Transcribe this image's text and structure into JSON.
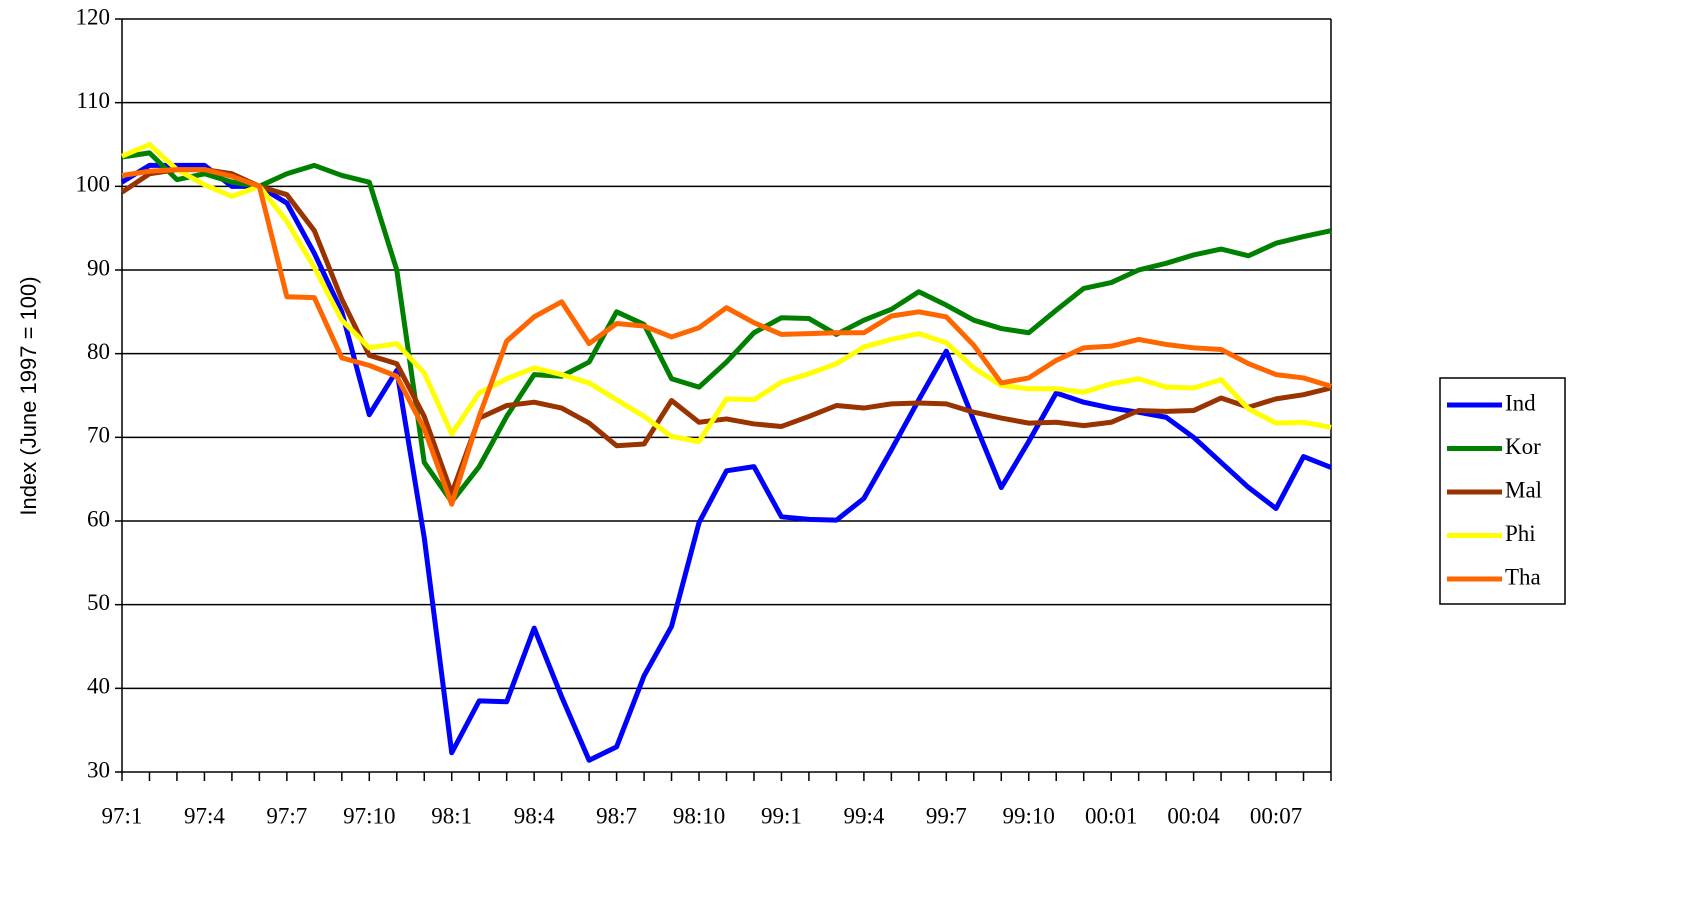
{
  "chart_data": {
    "type": "line",
    "y_label": "Index (June 1997 = 100)",
    "categories": [
      "97:1",
      null,
      null,
      "97:4",
      null,
      null,
      "97:7",
      null,
      null,
      "97:10",
      null,
      null,
      "98:1",
      null,
      null,
      "98:4",
      null,
      null,
      "98:7",
      null,
      null,
      "98:10",
      null,
      null,
      "99:1",
      null,
      null,
      "99:4",
      null,
      null,
      "99:7",
      null,
      null,
      "99:10",
      null,
      null,
      "00:01",
      null,
      null,
      "00:04",
      null,
      null,
      "00:07",
      null,
      null
    ],
    "ylim": [
      30,
      120
    ],
    "yticks": [
      30,
      40,
      50,
      60,
      70,
      80,
      90,
      100,
      110,
      120
    ],
    "grid": true,
    "legend": "right",
    "series": [
      {
        "name": "Ind",
        "color": "#0000ff",
        "values": [
          100.5,
          102.5,
          102.5,
          102.5,
          100,
          100,
          98,
          92,
          85,
          72.7,
          78,
          58,
          32.3,
          38.5,
          38.4,
          47.2,
          39,
          31.4,
          33,
          41.5,
          47.4,
          59.8,
          66,
          66.5,
          60.5,
          60.2,
          60.1,
          62.7,
          68.5,
          74.5,
          80.3,
          72,
          64,
          69.5,
          75.3,
          74.2,
          73.5,
          73,
          72.4,
          70,
          67,
          64,
          61.5,
          67.7,
          66.4
        ]
      },
      {
        "name": "Kor",
        "color": "#008000",
        "values": [
          103.5,
          104,
          100.8,
          101.5,
          100.5,
          100,
          101.5,
          102.5,
          101.3,
          100.5,
          90,
          67,
          62.3,
          66.5,
          72.5,
          77.5,
          77.3,
          79,
          85,
          83.5,
          77,
          76,
          79,
          82.5,
          84.3,
          84.2,
          82.3,
          84,
          85.3,
          87.4,
          85.8,
          84,
          83,
          82.5,
          85.2,
          87.8,
          88.5,
          90,
          90.8,
          91.8,
          92.5,
          91.7,
          93.2,
          94,
          94.7
        ]
      },
      {
        "name": "Mal",
        "color": "#993300",
        "values": [
          99.3,
          101.5,
          102,
          102,
          101.5,
          100,
          99,
          94.7,
          86.5,
          79.8,
          78.8,
          72.5,
          63.3,
          72.3,
          73.8,
          74.2,
          73.5,
          71.7,
          69,
          69.2,
          74.4,
          71.8,
          72.2,
          71.6,
          71.3,
          72.5,
          73.8,
          73.5,
          74,
          74.1,
          74,
          73,
          72.3,
          71.7,
          71.8,
          71.4,
          71.8,
          73.2,
          73.1,
          73.2,
          74.7,
          73.6,
          74.6,
          75.1,
          75.9
        ]
      },
      {
        "name": "Phi",
        "color": "#ffff00",
        "values": [
          103.6,
          105,
          102,
          100.2,
          98.8,
          100,
          95.8,
          90.3,
          84,
          80.7,
          81.2,
          77.7,
          70.4,
          75.3,
          77,
          78.3,
          77.5,
          76.5,
          74.5,
          72.5,
          70.1,
          69.5,
          74.6,
          74.5,
          76.6,
          77.6,
          78.8,
          80.8,
          81.7,
          82.4,
          81.3,
          78.3,
          76.2,
          75.8,
          75.8,
          75.4,
          76.4,
          77,
          76,
          75.9,
          76.9,
          73.4,
          71.7,
          71.8,
          71.2
        ]
      },
      {
        "name": "Tha",
        "color": "#ff6600",
        "values": [
          101.3,
          101.8,
          102,
          102,
          101.2,
          100,
          86.8,
          86.7,
          79.5,
          78.6,
          77.3,
          71,
          62,
          72.5,
          81.5,
          84.4,
          86.2,
          81.2,
          83.6,
          83.3,
          82,
          83.1,
          85.5,
          83.7,
          82.3,
          82.4,
          82.5,
          82.5,
          84.5,
          85,
          84.4,
          81,
          76.5,
          77.1,
          79.2,
          80.7,
          80.9,
          81.7,
          81.1,
          80.7,
          80.5,
          78.8,
          77.5,
          77.1,
          76.1
        ]
      }
    ]
  }
}
